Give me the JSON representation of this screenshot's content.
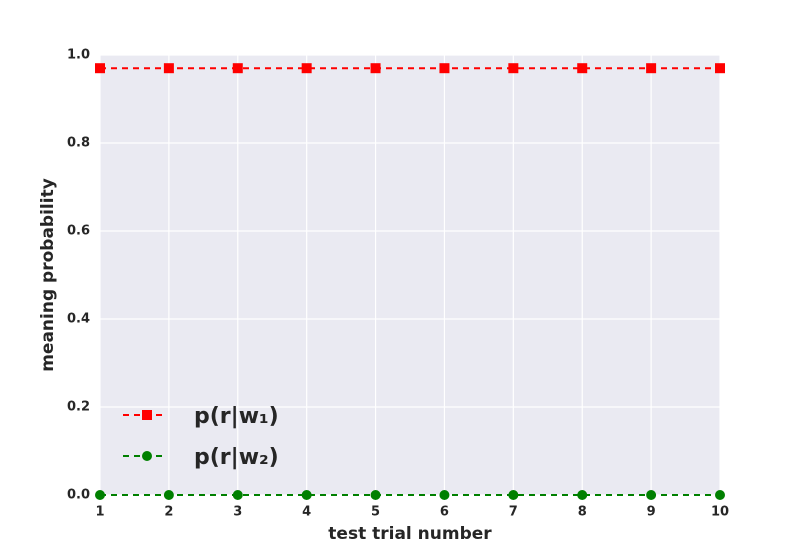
{
  "chart_data": {
    "type": "line",
    "xlabel": "test trial number",
    "ylabel": "meaning probability",
    "x": [
      1,
      2,
      3,
      4,
      5,
      6,
      7,
      8,
      9,
      10
    ],
    "series": [
      {
        "name": "p(r|w₁)",
        "color": "#ff0000",
        "marker": "square",
        "values": [
          0.97,
          0.97,
          0.97,
          0.97,
          0.97,
          0.97,
          0.97,
          0.97,
          0.97,
          0.97
        ]
      },
      {
        "name": "p(r|w₂)",
        "color": "#008000",
        "marker": "circle",
        "values": [
          0,
          0,
          0,
          0,
          0,
          0,
          0,
          0,
          0,
          0
        ]
      }
    ],
    "xlim": [
      1,
      10
    ],
    "xticks": [
      1,
      2,
      3,
      4,
      5,
      6,
      7,
      8,
      9,
      10
    ],
    "ylim": [
      0,
      1
    ],
    "yticks": [
      {
        "value": 0,
        "label": "0.0"
      },
      0.2,
      0.4,
      0.6,
      0.8,
      {
        "value": 1,
        "label": "1.0"
      }
    ],
    "grid": true,
    "legend": "lower left"
  }
}
